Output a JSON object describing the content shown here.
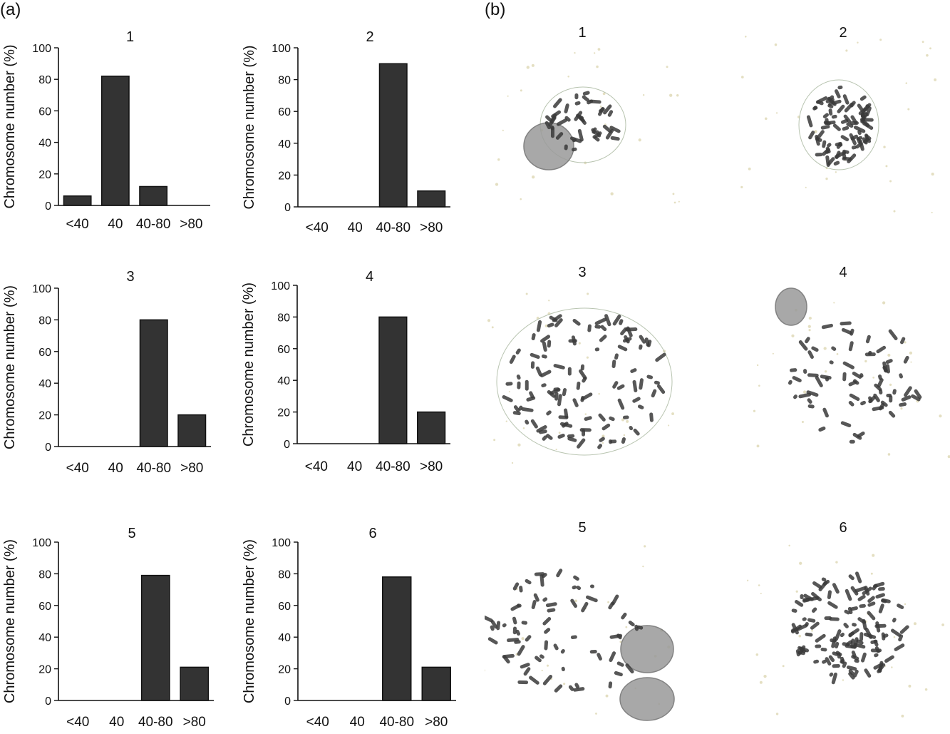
{
  "panel_a": {
    "letter": "(a)"
  },
  "panel_b": {
    "letter": "(b)",
    "images": [
      {
        "label": "1"
      },
      {
        "label": "2"
      },
      {
        "label": "3"
      },
      {
        "label": "4"
      },
      {
        "label": "5"
      },
      {
        "label": "6"
      }
    ]
  },
  "colors": {
    "bar": "#333333",
    "axis": "#111111",
    "chromosome": "#3a3a3a",
    "nucleus": "#8c8c8c"
  },
  "chart_data": [
    {
      "type": "bar",
      "title": "1",
      "ylabel": "Chromosome number (%)",
      "categories": [
        "<40",
        "40",
        "40-80",
        ">80"
      ],
      "values": [
        6,
        82,
        12,
        0
      ],
      "ylim": [
        0,
        100
      ],
      "yticks": [
        0,
        20,
        40,
        60,
        80,
        100
      ]
    },
    {
      "type": "bar",
      "title": "2",
      "ylabel": "Chromosome number (%)",
      "categories": [
        "<40",
        "40",
        "40-80",
        ">80"
      ],
      "values": [
        0,
        0,
        90,
        10
      ],
      "ylim": [
        0,
        100
      ],
      "yticks": [
        0,
        20,
        40,
        60,
        80,
        100
      ]
    },
    {
      "type": "bar",
      "title": "3",
      "ylabel": "Chromosome number (%)",
      "categories": [
        "<40",
        "40",
        "40-80",
        ">80"
      ],
      "values": [
        0,
        0,
        80,
        20
      ],
      "ylim": [
        0,
        100
      ],
      "yticks": [
        0,
        20,
        40,
        60,
        80,
        100
      ]
    },
    {
      "type": "bar",
      "title": "4",
      "ylabel": "Chromosome number (%)",
      "categories": [
        "<40",
        "40",
        "40-80",
        ">80"
      ],
      "values": [
        0,
        0,
        80,
        20
      ],
      "ylim": [
        0,
        100
      ],
      "yticks": [
        0,
        20,
        40,
        60,
        80,
        100
      ]
    },
    {
      "type": "bar",
      "title": "5",
      "ylabel": "Chromosome number (%)",
      "categories": [
        "<40",
        "40",
        "40-80",
        ">80"
      ],
      "values": [
        0,
        0,
        79,
        21
      ],
      "ylim": [
        0,
        100
      ],
      "yticks": [
        0,
        20,
        40,
        60,
        80,
        100
      ]
    },
    {
      "type": "bar",
      "title": "6",
      "ylabel": "Chromosome number (%)",
      "categories": [
        "<40",
        "40",
        "40-80",
        ">80"
      ],
      "values": [
        0,
        0,
        78,
        21
      ],
      "ylim": [
        0,
        100
      ],
      "yticks": [
        0,
        20,
        40,
        60,
        80,
        100
      ]
    }
  ]
}
